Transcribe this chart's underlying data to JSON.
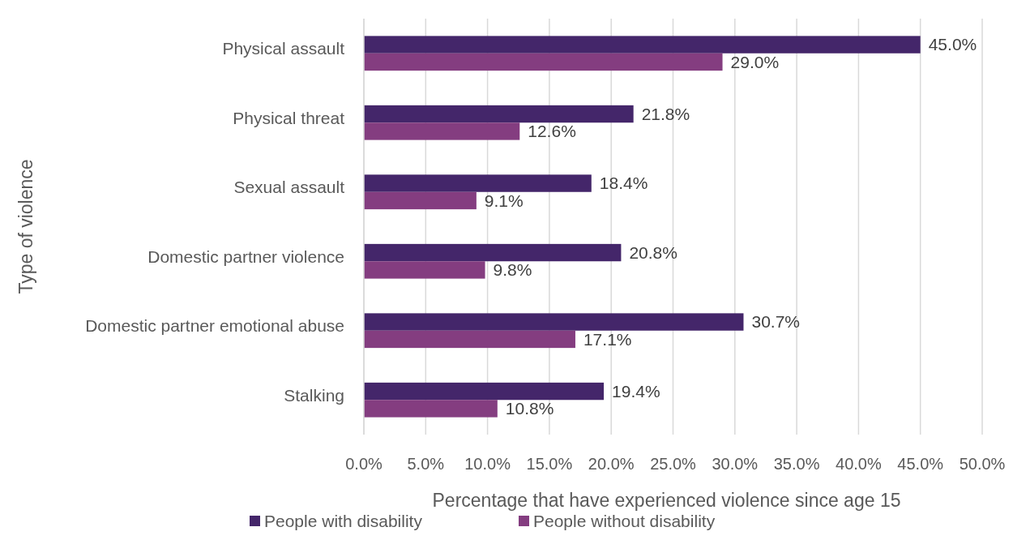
{
  "chart_data": {
    "type": "bar",
    "orientation": "horizontal",
    "xlabel": "Percentage that have experienced violence since age 15",
    "ylabel": "Type of violence",
    "categories": [
      "Physical assault",
      "Physical threat",
      "Sexual assault",
      "Domestic partner violence",
      "Domestic partner emotional abuse",
      "Stalking"
    ],
    "series": [
      {
        "name": "People with disability",
        "color": "#44266a",
        "values": [
          45.0,
          21.8,
          18.4,
          20.8,
          30.7,
          19.4
        ],
        "value_labels": [
          "45.0%",
          "21.8%",
          "18.4%",
          "20.8%",
          "30.7%",
          "19.4%"
        ]
      },
      {
        "name": "People without disability",
        "color": "#843d80",
        "values": [
          29.0,
          12.6,
          9.1,
          9.8,
          17.1,
          10.8
        ],
        "value_labels": [
          "29.0%",
          "12.6%",
          "9.1%",
          "9.8%",
          "17.1%",
          "10.8%"
        ]
      }
    ],
    "xlim": [
      0,
      50
    ],
    "xticks": [
      {
        "value": 0,
        "label": "0.0%"
      },
      {
        "value": 5,
        "label": "5.0%"
      },
      {
        "value": 10,
        "label": "10.0%"
      },
      {
        "value": 15,
        "label": "15.0%"
      },
      {
        "value": 20,
        "label": "20.0%"
      },
      {
        "value": 25,
        "label": "25.0%"
      },
      {
        "value": 30,
        "label": "30.0%"
      },
      {
        "value": 35,
        "label": "35.0%"
      },
      {
        "value": 40,
        "label": "40.0%"
      },
      {
        "value": 45,
        "label": "45.0%"
      },
      {
        "value": 50,
        "label": "50.0%"
      }
    ],
    "grid": "x",
    "legend": "bottom"
  }
}
